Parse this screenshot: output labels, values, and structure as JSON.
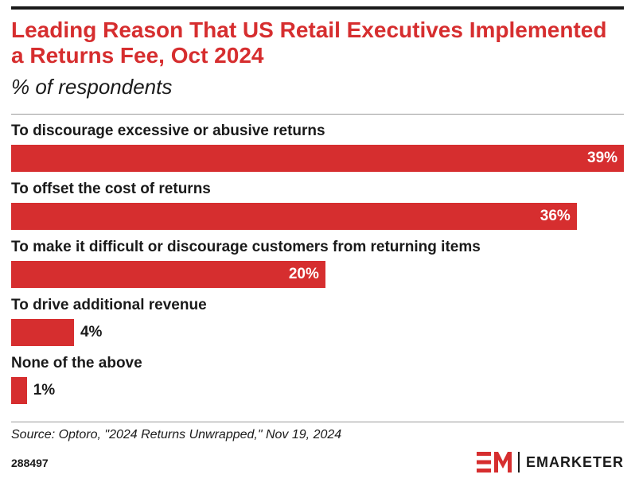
{
  "title": "Leading Reason That US Retail Executives Implemented a Returns Fee, Oct 2024",
  "subtitle": "% of respondents",
  "source": "Source: Optoro, \"2024 Returns Unwrapped,\" Nov 19, 2024",
  "chart_id": "288497",
  "brand": {
    "name": "EMARKETER",
    "logo": "em-logo-icon",
    "accent": "#d62e2f"
  },
  "chart_data": {
    "type": "bar",
    "orientation": "horizontal",
    "categories": [
      "To discourage excessive or abusive returns",
      "To offset the cost of returns",
      "To make it difficult or discourage customers from returning items",
      "To drive additional revenue",
      "None of the above"
    ],
    "values": [
      39,
      36,
      20,
      4,
      1
    ],
    "value_labels": [
      "39%",
      "36%",
      "20%",
      "4%",
      "1%"
    ],
    "unit": "%",
    "xlim": [
      0,
      39
    ],
    "grid": false,
    "legend": "none",
    "bar_color": "#d62e2f"
  }
}
